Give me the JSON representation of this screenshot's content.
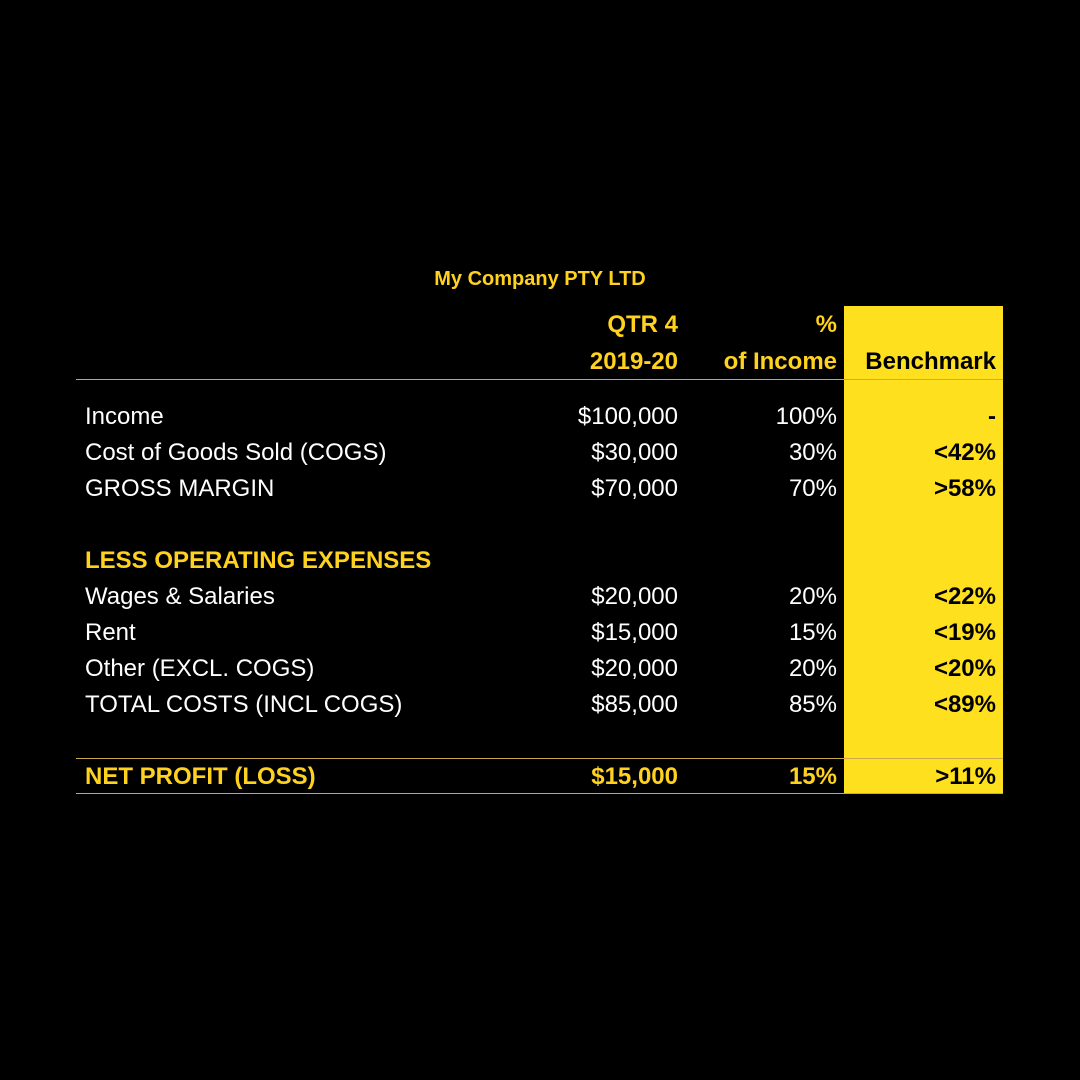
{
  "company": "My Company PTY LTD",
  "header": {
    "line1": {
      "qtr": "QTR 4",
      "pct": "%"
    },
    "line2": {
      "qtr": "2019-20",
      "pct": "of Income",
      "bench": "Benchmark"
    }
  },
  "rows": [
    {
      "label": "Income",
      "qtr": "$100,000",
      "pct": "100%",
      "bench": "-"
    },
    {
      "label": "Cost of Goods Sold (COGS)",
      "qtr": "$30,000",
      "pct": "30%",
      "bench": "<42%"
    },
    {
      "label": "GROSS MARGIN",
      "qtr": "$70,000",
      "pct": "70%",
      "bench": ">58%"
    }
  ],
  "section": {
    "label": "LESS OPERATING EXPENSES"
  },
  "expenses": [
    {
      "label": "Wages & Salaries",
      "qtr": "$20,000",
      "pct": "20%",
      "bench": "<22%"
    },
    {
      "label": "Rent",
      "qtr": "$15,000",
      "pct": "15%",
      "bench": "<19%"
    },
    {
      "label": "Other (EXCL. COGS)",
      "qtr": "$20,000",
      "pct": "20%",
      "bench": "<20%"
    },
    {
      "label": "TOTAL COSTS (INCL COGS)",
      "qtr": "$85,000",
      "pct": "85%",
      "bench": "<89%"
    }
  ],
  "net": {
    "label": "NET PROFIT (LOSS)",
    "qtr": "$15,000",
    "pct": "15%",
    "bench": ">11%"
  },
  "colors": {
    "background": "#000000",
    "accent_yellow": "#FFD21F",
    "benchmark_fill": "#FFE01E",
    "rule": "#C9A94A"
  }
}
